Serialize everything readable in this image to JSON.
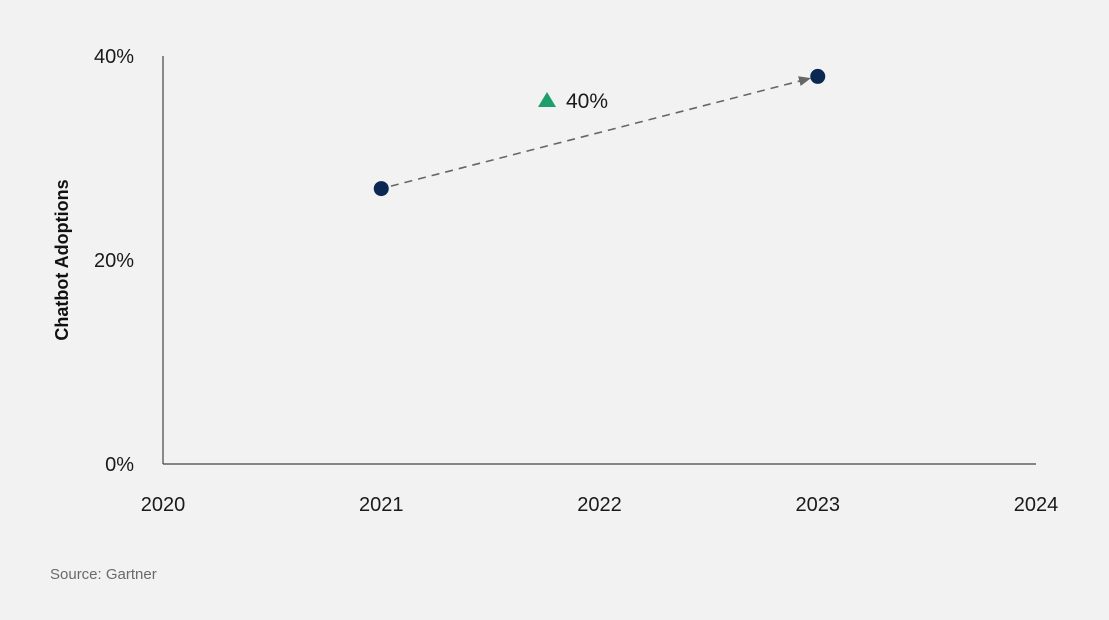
{
  "chart_data": {
    "type": "scatter",
    "title": "",
    "xlabel": "",
    "ylabel": "Chatbot Adoptions",
    "xlim": [
      2020,
      2024
    ],
    "ylim": [
      0,
      40
    ],
    "x_ticks": [
      "2020",
      "2021",
      "2022",
      "2023",
      "2024"
    ],
    "y_ticks": [
      "0%",
      "20%",
      "40%"
    ],
    "grid": false,
    "series": [
      {
        "x": [
          2021,
          2023
        ],
        "y": [
          27,
          38
        ]
      }
    ],
    "annotation": {
      "text": "40%",
      "icon": "up-triangle-icon"
    },
    "source": "Source: Gartner",
    "colors": {
      "point": "#0b2853",
      "arrow": "#666666",
      "up_marker": "#1e9e6a",
      "axis": "#444444",
      "background": "#f2f2f2"
    }
  }
}
